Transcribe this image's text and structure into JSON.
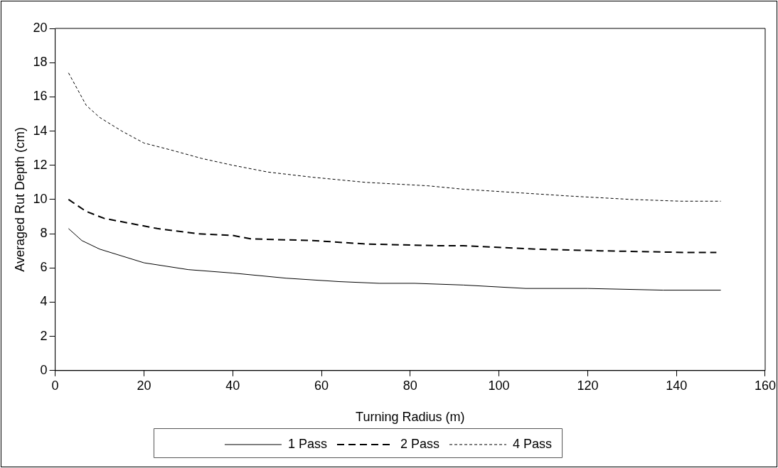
{
  "chart_data": {
    "type": "line",
    "xlabel": "Turning Radius (m)",
    "ylabel": "Averaged Rut Depth (cm)",
    "xlim": [
      0,
      160
    ],
    "xticks": [
      0,
      20,
      40,
      60,
      80,
      100,
      120,
      140,
      160
    ],
    "ylim": [
      0,
      20
    ],
    "yticks": [
      0,
      2,
      4,
      6,
      8,
      10,
      12,
      14,
      16,
      18,
      20
    ],
    "grid": false,
    "legend": "bottom",
    "marker": "none",
    "series": [
      {
        "name": "1 Pass",
        "color": "#000000",
        "line_style": "solid",
        "x": [
          3,
          6,
          10,
          20,
          30,
          40,
          52,
          64,
          73,
          81,
          92,
          106,
          120,
          137,
          150
        ],
        "values": [
          8.3,
          7.6,
          7.1,
          6.3,
          5.9,
          5.7,
          5.4,
          5.2,
          5.1,
          5.1,
          5.0,
          4.8,
          4.8,
          4.7,
          4.7
        ]
      },
      {
        "name": "2 Pass",
        "color": "#000000",
        "line_style": "dashed",
        "x": [
          3,
          7,
          11,
          19,
          23,
          32,
          40,
          44,
          58,
          70,
          86,
          92,
          108,
          123,
          143,
          149
        ],
        "values": [
          10.0,
          9.3,
          8.9,
          8.5,
          8.3,
          8.0,
          7.9,
          7.7,
          7.6,
          7.4,
          7.3,
          7.3,
          7.1,
          7.0,
          6.9,
          6.9
        ]
      },
      {
        "name": "4 Pass",
        "color": "#000000",
        "line_style": "dotted",
        "x": [
          3,
          7,
          10,
          15,
          20,
          26,
          33,
          40,
          48,
          58,
          70,
          84,
          92,
          104,
          116,
          130,
          141,
          150
        ],
        "values": [
          17.4,
          15.5,
          14.8,
          14.0,
          13.3,
          12.9,
          12.4,
          12.0,
          11.6,
          11.3,
          11.0,
          10.8,
          10.6,
          10.4,
          10.2,
          10.0,
          9.9,
          9.9
        ]
      }
    ]
  }
}
